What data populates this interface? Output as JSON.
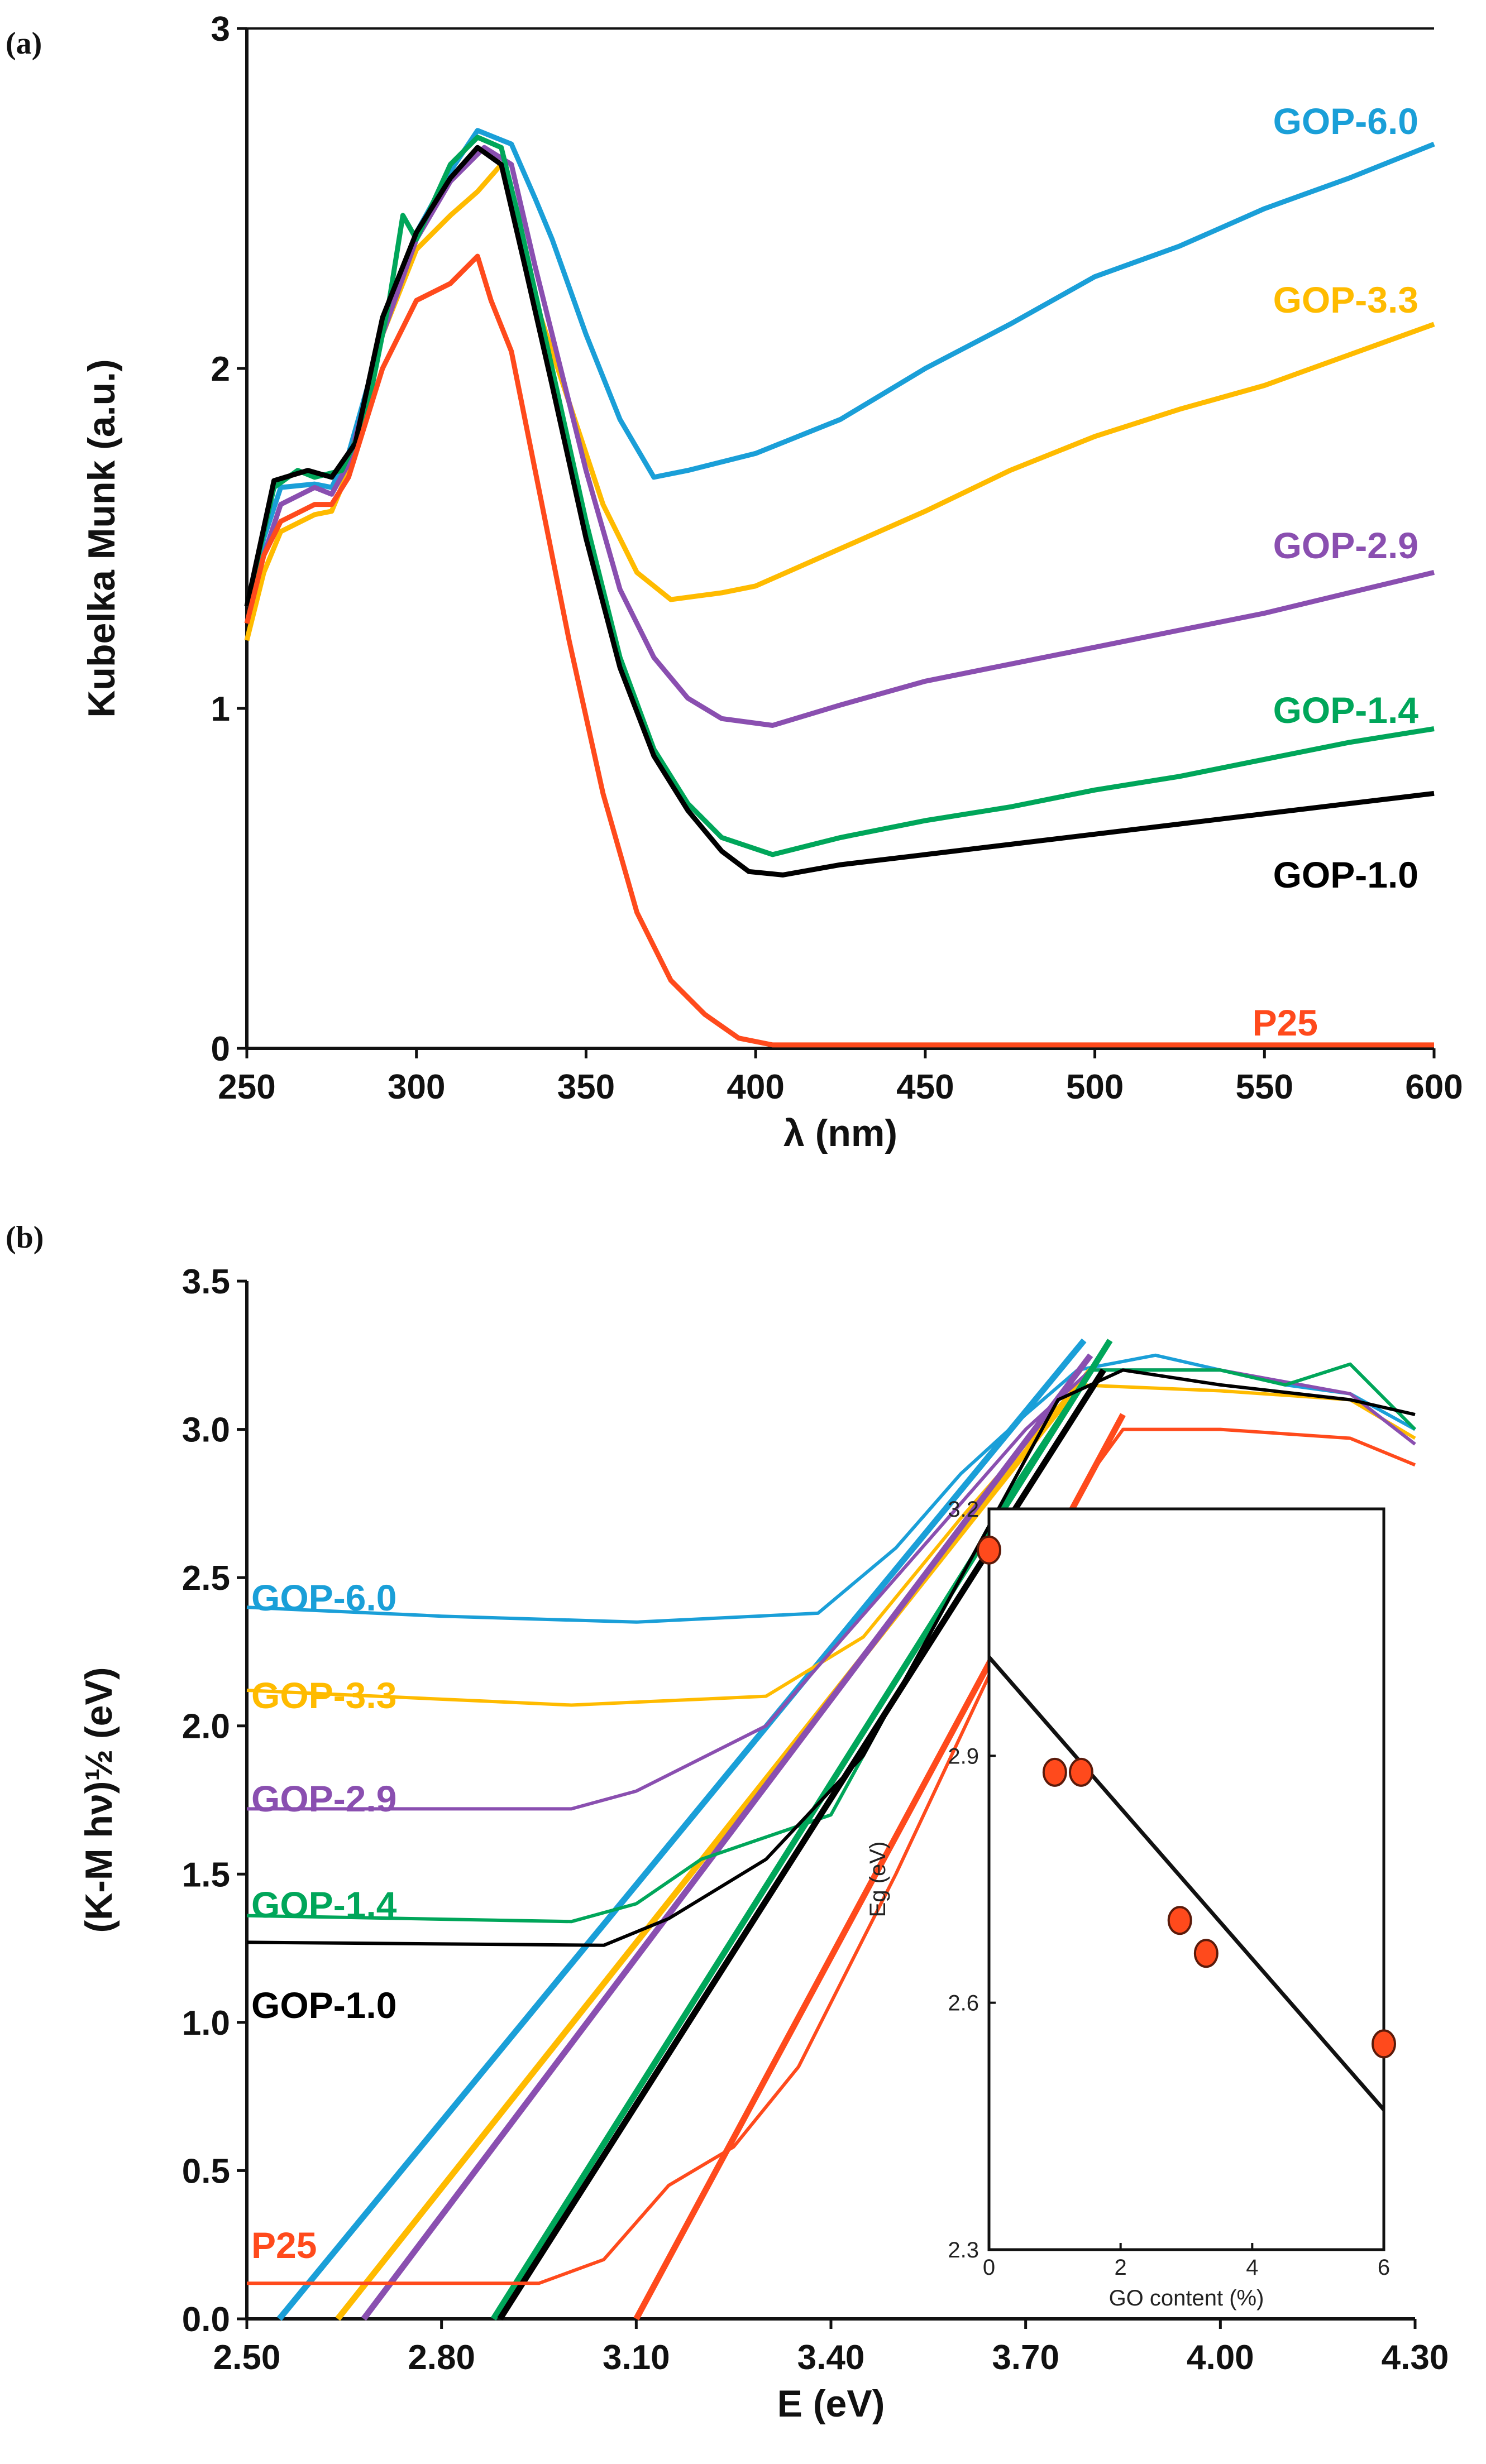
{
  "chart_data": [
    {
      "panel_label": "(a)",
      "type": "line",
      "xlabel": "λ (nm)",
      "ylabel": "Kubelka Munk (a.u.)",
      "xlim": [
        250,
        600
      ],
      "ylim": [
        0,
        3
      ],
      "xticks": [
        "250",
        "300",
        "350",
        "400",
        "450",
        "500",
        "550",
        "600"
      ],
      "yticks": [
        "0",
        "1",
        "2",
        "3"
      ],
      "grid": false,
      "series": [
        {
          "name": "GOP-6.0",
          "color": "#1a9fd8",
          "points": [
            [
              250,
              1.3
            ],
            [
              255,
              1.5
            ],
            [
              260,
              1.65
            ],
            [
              270,
              1.66
            ],
            [
              275,
              1.65
            ],
            [
              280,
              1.75
            ],
            [
              290,
              2.1
            ],
            [
              300,
              2.4
            ],
            [
              310,
              2.58
            ],
            [
              318,
              2.7
            ],
            [
              328,
              2.66
            ],
            [
              335,
              2.5
            ],
            [
              340,
              2.38
            ],
            [
              350,
              2.1
            ],
            [
              360,
              1.85
            ],
            [
              370,
              1.68
            ],
            [
              380,
              1.7
            ],
            [
              400,
              1.75
            ],
            [
              425,
              1.85
            ],
            [
              450,
              2.0
            ],
            [
              475,
              2.13
            ],
            [
              500,
              2.27
            ],
            [
              525,
              2.36
            ],
            [
              550,
              2.47
            ],
            [
              575,
              2.56
            ],
            [
              600,
              2.66
            ]
          ]
        },
        {
          "name": "GOP-3.3",
          "color": "#ffbb00",
          "points": [
            [
              250,
              1.2
            ],
            [
              255,
              1.4
            ],
            [
              260,
              1.52
            ],
            [
              270,
              1.57
            ],
            [
              275,
              1.58
            ],
            [
              280,
              1.7
            ],
            [
              290,
              2.1
            ],
            [
              300,
              2.35
            ],
            [
              310,
              2.45
            ],
            [
              318,
              2.52
            ],
            [
              325,
              2.6
            ],
            [
              330,
              2.45
            ],
            [
              335,
              2.2
            ],
            [
              345,
              1.9
            ],
            [
              355,
              1.6
            ],
            [
              365,
              1.4
            ],
            [
              375,
              1.32
            ],
            [
              390,
              1.34
            ],
            [
              400,
              1.36
            ],
            [
              425,
              1.47
            ],
            [
              450,
              1.58
            ],
            [
              475,
              1.7
            ],
            [
              500,
              1.8
            ],
            [
              525,
              1.88
            ],
            [
              550,
              1.95
            ],
            [
              575,
              2.04
            ],
            [
              600,
              2.13
            ]
          ]
        },
        {
          "name": "GOP-2.9",
          "color": "#8a4fb0",
          "points": [
            [
              250,
              1.3
            ],
            [
              260,
              1.6
            ],
            [
              270,
              1.65
            ],
            [
              275,
              1.63
            ],
            [
              280,
              1.72
            ],
            [
              290,
              2.1
            ],
            [
              300,
              2.38
            ],
            [
              310,
              2.55
            ],
            [
              320,
              2.65
            ],
            [
              328,
              2.6
            ],
            [
              335,
              2.3
            ],
            [
              340,
              2.1
            ],
            [
              350,
              1.7
            ],
            [
              360,
              1.35
            ],
            [
              370,
              1.15
            ],
            [
              380,
              1.03
            ],
            [
              390,
              0.97
            ],
            [
              405,
              0.95
            ],
            [
              425,
              1.01
            ],
            [
              450,
              1.08
            ],
            [
              475,
              1.13
            ],
            [
              500,
              1.18
            ],
            [
              525,
              1.23
            ],
            [
              550,
              1.28
            ],
            [
              575,
              1.34
            ],
            [
              600,
              1.4
            ]
          ]
        },
        {
          "name": "GOP-1.4",
          "color": "#00a65a",
          "points": [
            [
              250,
              1.3
            ],
            [
              258,
              1.65
            ],
            [
              265,
              1.7
            ],
            [
              270,
              1.68
            ],
            [
              278,
              1.7
            ],
            [
              285,
              1.85
            ],
            [
              292,
              2.2
            ],
            [
              296,
              2.45
            ],
            [
              300,
              2.38
            ],
            [
              310,
              2.6
            ],
            [
              318,
              2.68
            ],
            [
              325,
              2.65
            ],
            [
              330,
              2.45
            ],
            [
              340,
              2.0
            ],
            [
              350,
              1.55
            ],
            [
              360,
              1.15
            ],
            [
              370,
              0.88
            ],
            [
              380,
              0.72
            ],
            [
              390,
              0.62
            ],
            [
              405,
              0.57
            ],
            [
              425,
              0.62
            ],
            [
              450,
              0.67
            ],
            [
              475,
              0.71
            ],
            [
              500,
              0.76
            ],
            [
              525,
              0.8
            ],
            [
              550,
              0.85
            ],
            [
              575,
              0.9
            ],
            [
              600,
              0.94
            ]
          ]
        },
        {
          "name": "GOP-1.0",
          "color": "#000000",
          "points": [
            [
              250,
              1.3
            ],
            [
              258,
              1.67
            ],
            [
              268,
              1.7
            ],
            [
              275,
              1.68
            ],
            [
              282,
              1.78
            ],
            [
              290,
              2.15
            ],
            [
              300,
              2.4
            ],
            [
              310,
              2.56
            ],
            [
              318,
              2.65
            ],
            [
              325,
              2.6
            ],
            [
              332,
              2.3
            ],
            [
              340,
              1.95
            ],
            [
              350,
              1.5
            ],
            [
              360,
              1.12
            ],
            [
              370,
              0.86
            ],
            [
              380,
              0.7
            ],
            [
              390,
              0.58
            ],
            [
              398,
              0.52
            ],
            [
              408,
              0.51
            ],
            [
              425,
              0.54
            ],
            [
              450,
              0.57
            ],
            [
              475,
              0.6
            ],
            [
              500,
              0.63
            ],
            [
              525,
              0.66
            ],
            [
              550,
              0.69
            ],
            [
              575,
              0.72
            ],
            [
              600,
              0.75
            ]
          ]
        },
        {
          "name": "P25",
          "color": "#ff4a1c",
          "points": [
            [
              250,
              1.25
            ],
            [
              255,
              1.45
            ],
            [
              260,
              1.55
            ],
            [
              270,
              1.6
            ],
            [
              275,
              1.6
            ],
            [
              280,
              1.68
            ],
            [
              290,
              2.0
            ],
            [
              300,
              2.2
            ],
            [
              310,
              2.25
            ],
            [
              318,
              2.33
            ],
            [
              322,
              2.2
            ],
            [
              328,
              2.05
            ],
            [
              335,
              1.7
            ],
            [
              345,
              1.2
            ],
            [
              355,
              0.75
            ],
            [
              365,
              0.4
            ],
            [
              375,
              0.2
            ],
            [
              385,
              0.1
            ],
            [
              395,
              0.03
            ],
            [
              405,
              0.01
            ],
            [
              600,
              0.01
            ]
          ]
        }
      ]
    },
    {
      "panel_label": "(b)",
      "type": "line",
      "xlabel": "E (eV)",
      "ylabel": "(K-M hν)½ (eV)",
      "xlim": [
        2.5,
        4.3
      ],
      "ylim": [
        0,
        3.5
      ],
      "xticks": [
        "2.50",
        "2.80",
        "3.10",
        "3.40",
        "3.70",
        "4.00",
        "4.30"
      ],
      "yticks": [
        "0.0",
        "0.5",
        "1.0",
        "1.5",
        "2.0",
        "2.5",
        "3.0",
        "3.5"
      ],
      "grid": false,
      "series": [
        {
          "name": "GOP-6.0",
          "color": "#1a9fd8",
          "points": [
            [
              2.5,
              2.4
            ],
            [
              2.8,
              2.37
            ],
            [
              3.1,
              2.35
            ],
            [
              3.38,
              2.38
            ],
            [
              3.5,
              2.6
            ],
            [
              3.6,
              2.85
            ],
            [
              3.7,
              3.05
            ],
            [
              3.78,
              3.2
            ],
            [
              3.9,
              3.25
            ],
            [
              4.0,
              3.2
            ],
            [
              4.1,
              3.15
            ],
            [
              4.2,
              3.12
            ],
            [
              4.3,
              3.0
            ]
          ],
          "tangent": [
            [
              2.55,
              0
            ],
            [
              3.79,
              3.3
            ]
          ]
        },
        {
          "name": "GOP-3.3",
          "color": "#ffbb00",
          "points": [
            [
              2.5,
              2.12
            ],
            [
              3.0,
              2.07
            ],
            [
              3.3,
              2.1
            ],
            [
              3.45,
              2.3
            ],
            [
              3.6,
              2.7
            ],
            [
              3.78,
              3.15
            ],
            [
              4.0,
              3.13
            ],
            [
              4.2,
              3.1
            ],
            [
              4.3,
              2.97
            ]
          ],
          "tangent": [
            [
              2.64,
              0
            ],
            [
              3.8,
              3.2
            ]
          ]
        },
        {
          "name": "GOP-2.9",
          "color": "#8a4fb0",
          "points": [
            [
              2.5,
              1.72
            ],
            [
              3.0,
              1.72
            ],
            [
              3.1,
              1.78
            ],
            [
              3.3,
              2.0
            ],
            [
              3.5,
              2.5
            ],
            [
              3.7,
              3.0
            ],
            [
              3.8,
              3.2
            ],
            [
              4.0,
              3.2
            ],
            [
              4.2,
              3.12
            ],
            [
              4.3,
              2.95
            ]
          ],
          "tangent": [
            [
              2.68,
              0
            ],
            [
              3.8,
              3.25
            ]
          ]
        },
        {
          "name": "GOP-1.4",
          "color": "#00a65a",
          "points": [
            [
              2.5,
              1.36
            ],
            [
              3.0,
              1.34
            ],
            [
              3.1,
              1.4
            ],
            [
              3.2,
              1.55
            ],
            [
              3.4,
              1.7
            ],
            [
              3.5,
              2.1
            ],
            [
              3.65,
              2.7
            ],
            [
              3.8,
              3.2
            ],
            [
              4.0,
              3.2
            ],
            [
              4.1,
              3.15
            ],
            [
              4.2,
              3.22
            ],
            [
              4.3,
              3.0
            ]
          ],
          "tangent": [
            [
              2.88,
              0
            ],
            [
              3.83,
              3.3
            ]
          ]
        },
        {
          "name": "GOP-1.0",
          "color": "#000000",
          "points": [
            [
              2.5,
              1.27
            ],
            [
              3.05,
              1.26
            ],
            [
              3.15,
              1.35
            ],
            [
              3.3,
              1.55
            ],
            [
              3.45,
              1.9
            ],
            [
              3.6,
              2.5
            ],
            [
              3.75,
              3.1
            ],
            [
              3.85,
              3.2
            ],
            [
              4.0,
              3.15
            ],
            [
              4.2,
              3.1
            ],
            [
              4.3,
              3.05
            ]
          ],
          "tangent": [
            [
              2.89,
              0
            ],
            [
              3.82,
              3.2
            ]
          ]
        },
        {
          "name": "P25",
          "color": "#ff4a1c",
          "points": [
            [
              2.5,
              0.12
            ],
            [
              2.95,
              0.12
            ],
            [
              3.05,
              0.2
            ],
            [
              3.15,
              0.45
            ],
            [
              3.25,
              0.58
            ],
            [
              3.35,
              0.85
            ],
            [
              3.5,
              1.5
            ],
            [
              3.65,
              2.2
            ],
            [
              3.8,
              2.85
            ],
            [
              3.85,
              3.0
            ],
            [
              4.0,
              3.0
            ],
            [
              4.2,
              2.97
            ],
            [
              4.3,
              2.88
            ]
          ],
          "tangent": [
            [
              3.1,
              0
            ],
            [
              3.85,
              3.05
            ]
          ]
        }
      ],
      "inset": {
        "type": "scatter",
        "xlabel": "GO content (%)",
        "ylabel": "Eg (eV)",
        "xlim": [
          0,
          6
        ],
        "ylim": [
          2.3,
          3.2
        ],
        "xticks": [
          "0",
          "2",
          "4",
          "6"
        ],
        "yticks": [
          "2.3",
          "2.6",
          "2.9",
          "3.2"
        ],
        "marker_color": "#ff4a1c",
        "points": [
          [
            0,
            3.15
          ],
          [
            1.0,
            2.88
          ],
          [
            1.4,
            2.88
          ],
          [
            2.9,
            2.7
          ],
          [
            3.3,
            2.66
          ],
          [
            6.0,
            2.55
          ]
        ],
        "fit_line": [
          [
            0,
            3.02
          ],
          [
            6,
            2.47
          ]
        ]
      }
    }
  ]
}
